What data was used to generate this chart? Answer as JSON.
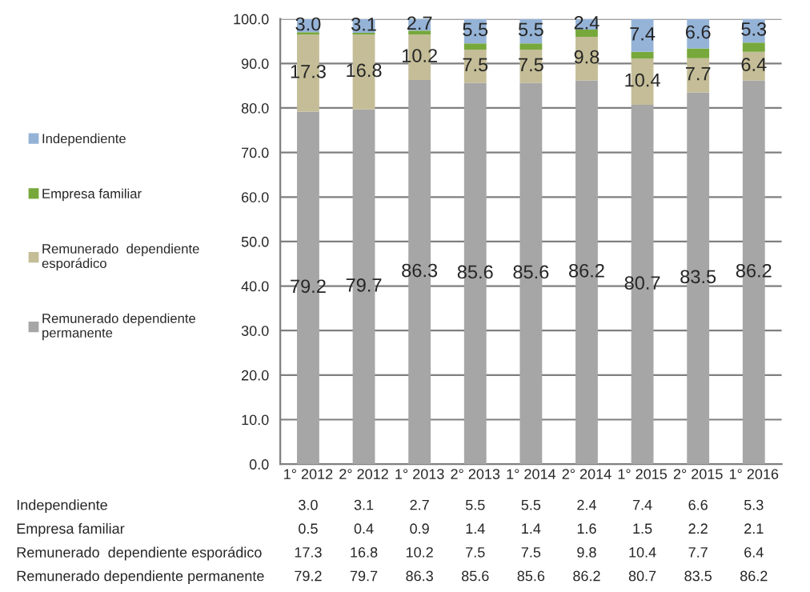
{
  "chart_data": {
    "type": "bar",
    "stacked": true,
    "categories": [
      "1° 2012",
      "2° 2012",
      "1° 2013",
      "2° 2013",
      "1° 2014",
      "2° 2014",
      "1° 2015",
      "2° 2015",
      "1° 2016"
    ],
    "series": [
      {
        "name": "Remunerado dependiente permanente",
        "color": "#a6a6a6",
        "values": [
          79.2,
          79.7,
          86.3,
          85.6,
          85.6,
          86.2,
          80.7,
          83.5,
          86.2
        ],
        "value_labels": [
          "79.2",
          "79.7",
          "86.3",
          "85.6",
          "85.6",
          "86.2",
          "80.7",
          "83.5",
          "86.2"
        ]
      },
      {
        "name": "Remunerado  dependiente esporádico",
        "color": "#c4bd97",
        "values": [
          17.3,
          16.8,
          10.2,
          7.5,
          7.5,
          9.8,
          10.4,
          7.7,
          6.4
        ],
        "value_labels": [
          "17.3",
          "16.8",
          "10.2",
          "7.5",
          "7.5",
          "9.8",
          "10.4",
          "7.7",
          "6.4"
        ]
      },
      {
        "name": "Empresa familiar",
        "color": "#77a83b",
        "values": [
          0.5,
          0.4,
          0.9,
          1.4,
          1.4,
          1.6,
          1.5,
          2.2,
          2.1
        ]
      },
      {
        "name": "Independiente",
        "color": "#95b3d7",
        "values": [
          3.0,
          3.1,
          2.7,
          5.5,
          5.5,
          2.4,
          7.4,
          6.6,
          5.3
        ],
        "value_labels": [
          "3.0",
          "3.1",
          "2.7",
          "5.5",
          "5.5",
          "2.4",
          "7.4",
          "6.6",
          "5.3"
        ]
      }
    ],
    "annotations": [
      "3.0",
      "3.1",
      "2.7",
      "5.5",
      "5.5",
      "2.4",
      "7.4",
      "6.6",
      "5.3",
      "0.5",
      "0.4",
      "0.9",
      "1.4",
      "1.4",
      "1.6",
      "1.5",
      "2.2",
      "2.1",
      "17.3",
      "16.8",
      "10.2",
      "7.5",
      "7.5",
      "9.8",
      "10.4",
      "7.7",
      "6.4",
      "79.2",
      "79.7",
      "86.3",
      "85.6",
      "85.6",
      "86.2",
      "80.7",
      "83.5",
      "86.2"
    ],
    "ylim": [
      0,
      100
    ],
    "yticks": [
      {
        "value": 0,
        "label": "0.0"
      },
      {
        "value": 10,
        "label": "10.0"
      },
      {
        "value": 20,
        "label": "20.0"
      },
      {
        "value": 30,
        "label": "30.0"
      },
      {
        "value": 40,
        "label": "40.0"
      },
      {
        "value": 50,
        "label": "50.0"
      },
      {
        "value": 60,
        "label": "60.0"
      },
      {
        "value": 70,
        "label": "70.0"
      },
      {
        "value": 80,
        "label": "80.0"
      },
      {
        "value": 90,
        "label": "90.0"
      },
      {
        "value": 100,
        "label": "100.0"
      }
    ],
    "grid": "y",
    "legend": "left"
  }
}
